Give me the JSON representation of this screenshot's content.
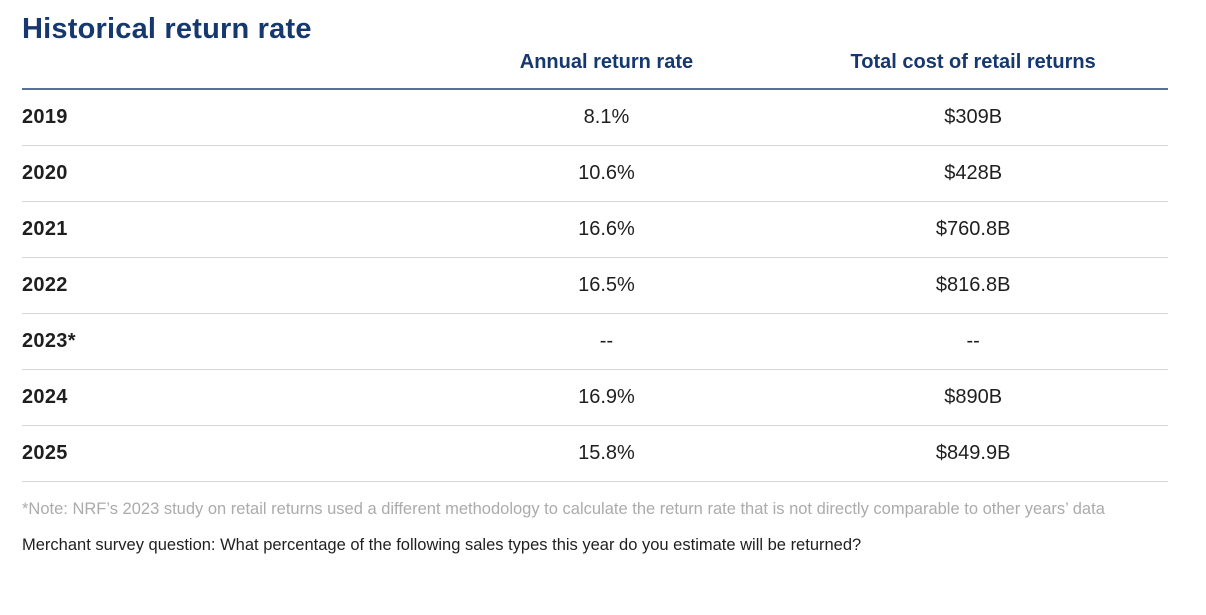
{
  "chart_data": {
    "type": "table",
    "title": "Historical return rate",
    "columns": [
      "",
      "Annual return rate",
      "Total cost of retail returns"
    ],
    "rows": [
      {
        "year": "2019",
        "annual_return_rate": "8.1%",
        "total_cost": "$309B"
      },
      {
        "year": "2020",
        "annual_return_rate": "10.6%",
        "total_cost": "$428B"
      },
      {
        "year": "2021",
        "annual_return_rate": "16.6%",
        "total_cost": "$760.8B"
      },
      {
        "year": "2022",
        "annual_return_rate": "16.5%",
        "total_cost": "$816.8B"
      },
      {
        "year": "2023*",
        "annual_return_rate": "--",
        "total_cost": "--"
      },
      {
        "year": "2024",
        "annual_return_rate": "16.9%",
        "total_cost": "$890B"
      },
      {
        "year": "2025",
        "annual_return_rate": "15.8%",
        "total_cost": "$849.9B"
      }
    ],
    "numeric": {
      "years": [
        2019,
        2020,
        2021,
        2022,
        2023,
        2024,
        2025
      ],
      "annual_return_rate_pct": [
        8.1,
        10.6,
        16.6,
        16.5,
        null,
        16.9,
        15.8
      ],
      "total_cost_billions_usd": [
        309,
        428,
        760.8,
        816.8,
        null,
        890,
        849.9
      ]
    }
  },
  "footnote": "*Note: NRF’s 2023 study on retail returns used a different methodology to calculate the return rate that is not directly comparable to other years’ data",
  "survey_question": "Merchant survey question: What percentage of the following sales types this year do you estimate will be returned?",
  "colors": {
    "navy": "#16386e",
    "header_rule": "#5a7196",
    "row_rule": "#d7d7d7",
    "text_dark": "#1f1f1f",
    "footnote_gray": "#ababab"
  }
}
